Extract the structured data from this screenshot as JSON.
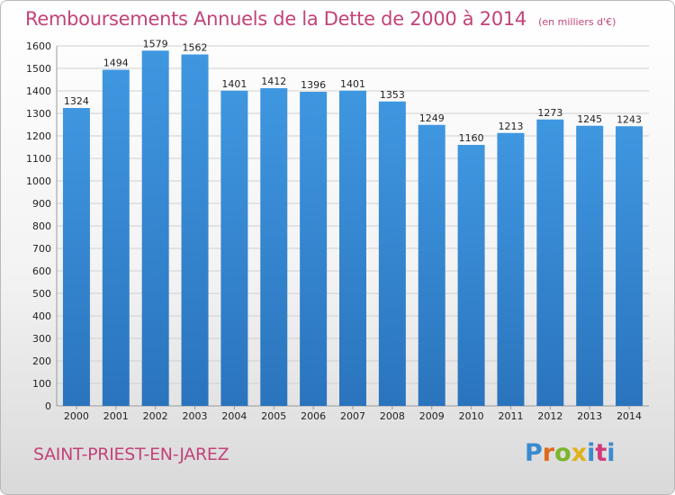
{
  "chart_data": {
    "type": "bar",
    "title": "Remboursements Annuels de la Dette de 2000 à 2014",
    "subtitle": "(en milliers d'€)",
    "categories": [
      "2000",
      "2001",
      "2002",
      "2003",
      "2004",
      "2005",
      "2006",
      "2007",
      "2008",
      "2009",
      "2010",
      "2011",
      "2012",
      "2013",
      "2014"
    ],
    "values": [
      1324,
      1494,
      1579,
      1562,
      1401,
      1412,
      1396,
      1401,
      1353,
      1249,
      1160,
      1213,
      1273,
      1245,
      1243
    ],
    "ylim": [
      0,
      1600
    ],
    "yticks": [
      0,
      100,
      200,
      300,
      400,
      500,
      600,
      700,
      800,
      900,
      1000,
      1100,
      1200,
      1300,
      1400,
      1500,
      1600
    ],
    "grid": true,
    "bar_color": "#3f97e0",
    "bar_color_dark": "#2a74bd"
  },
  "footer": {
    "city": "SAINT-PRIEST-EN-JAREZ",
    "logo_letters": [
      "P",
      "r",
      "o",
      "x",
      "i",
      "t",
      "i"
    ]
  },
  "colors": {
    "title": "#c2437a",
    "grid": "#d0d0d0"
  }
}
